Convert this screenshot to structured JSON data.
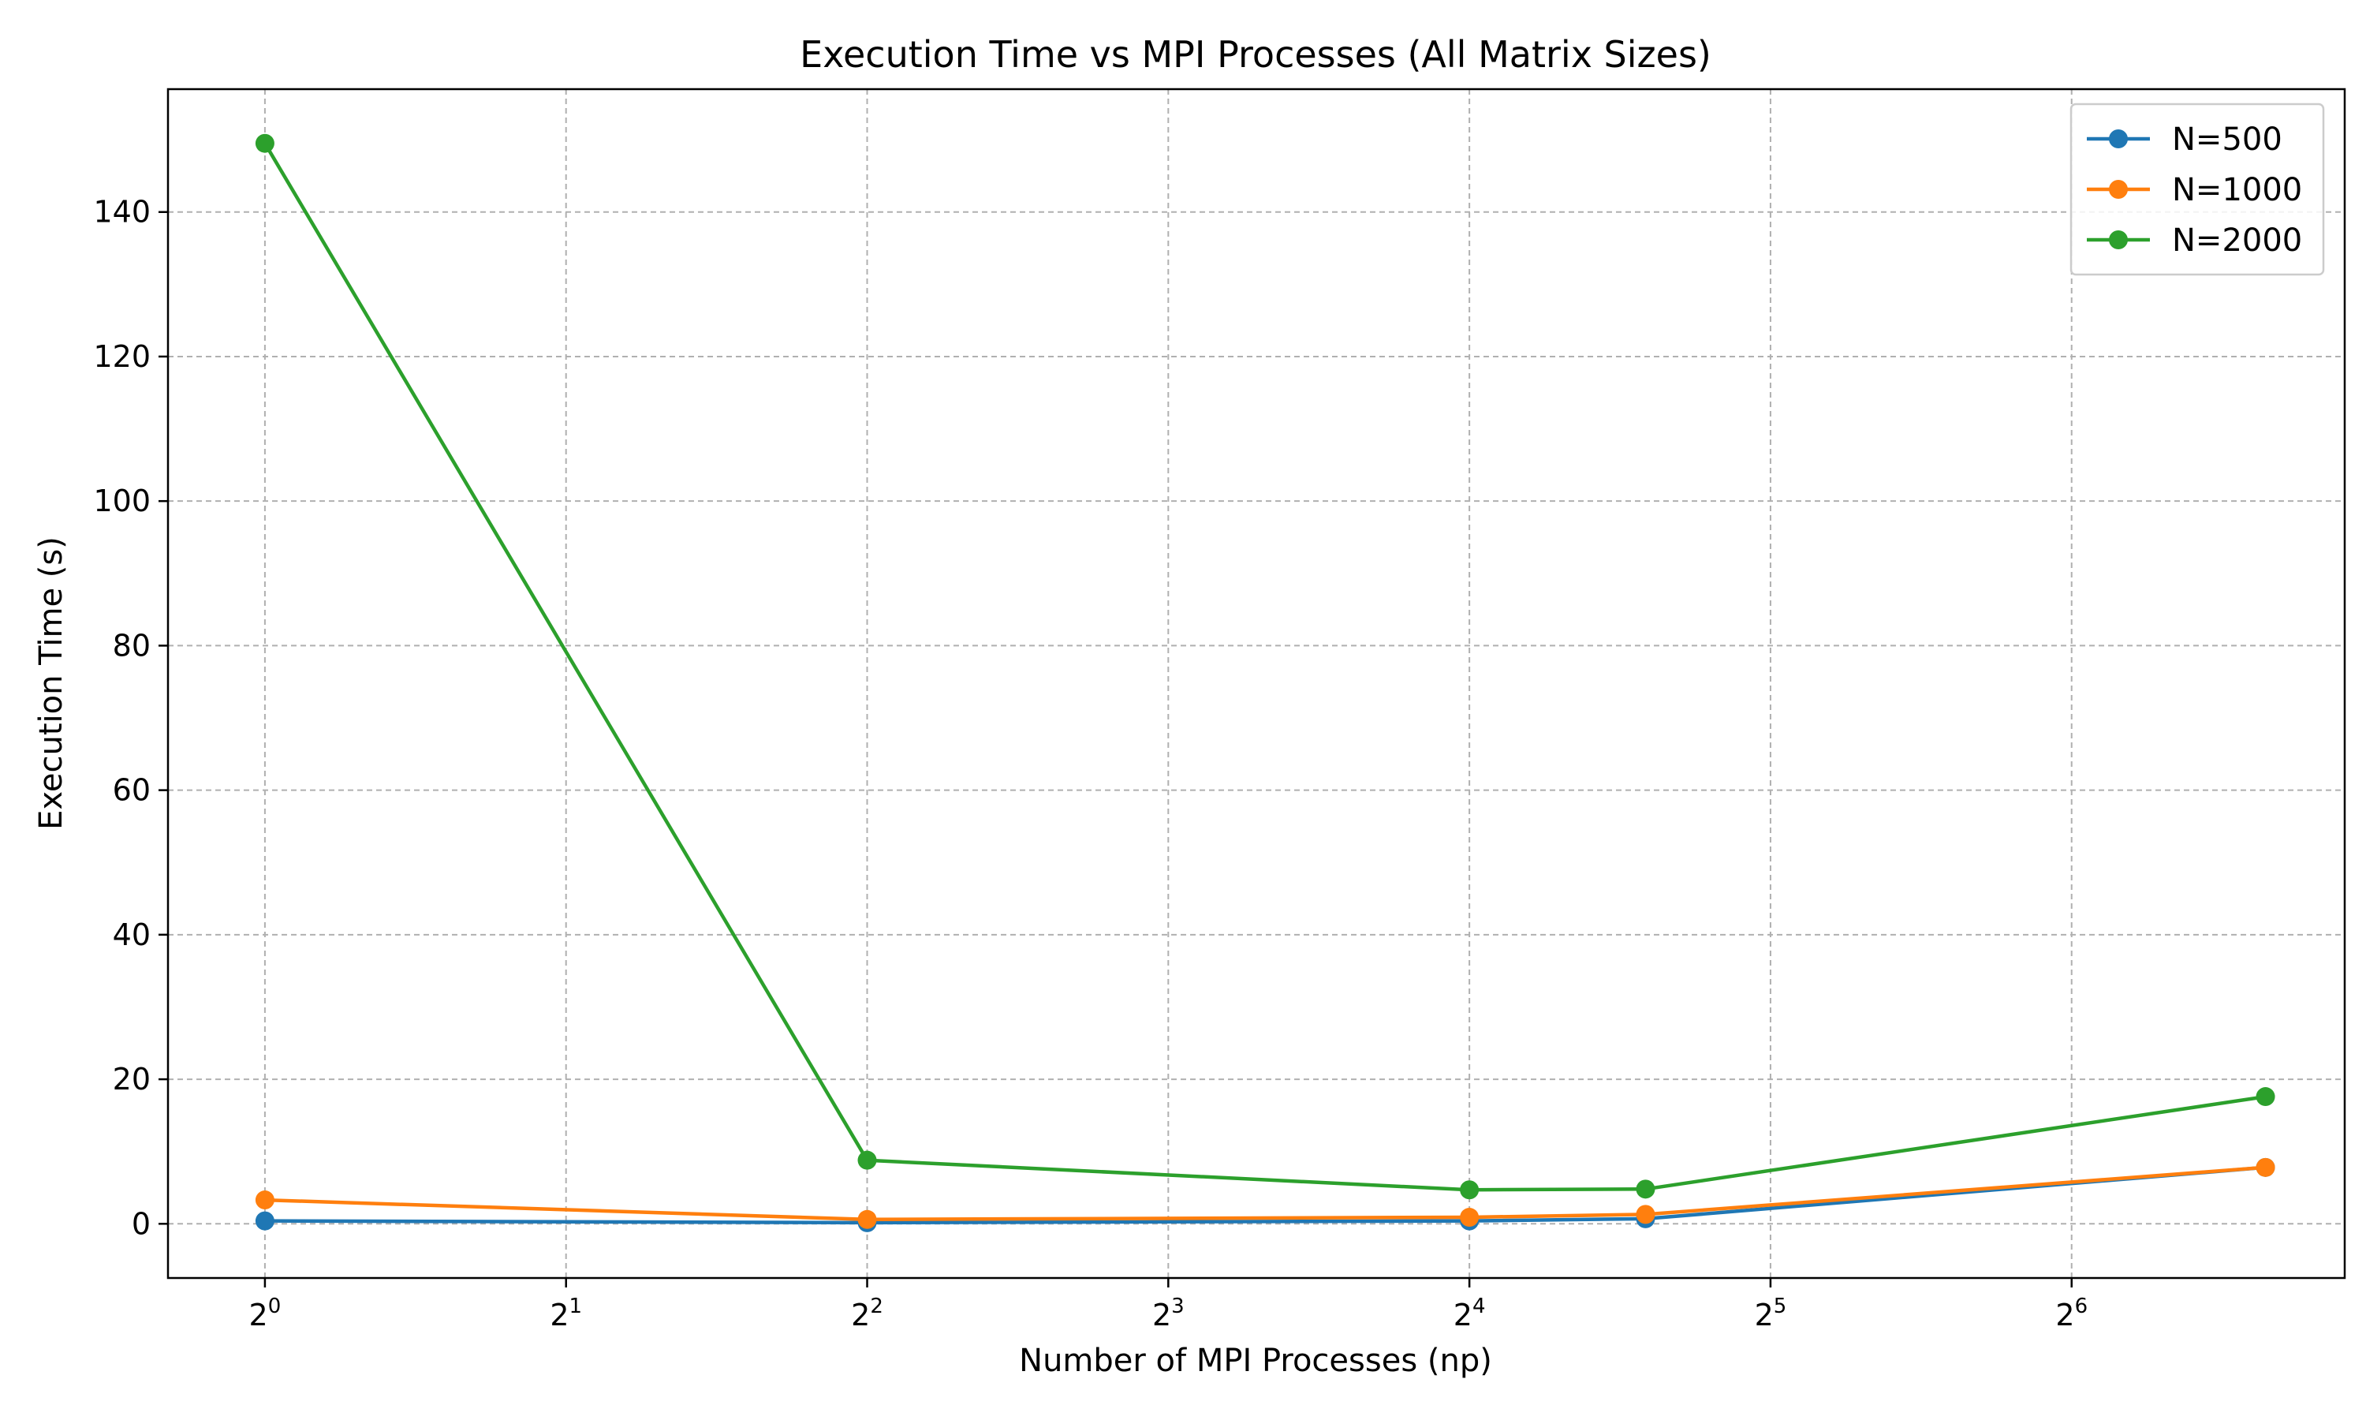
{
  "chart_data": {
    "type": "line",
    "title": "Execution Time vs MPI Processes (All Matrix Sizes)",
    "xlabel": "Number of MPI Processes (np)",
    "ylabel": "Execution Time (s)",
    "xscale": "log2",
    "xlim": [
      0.8,
      120
    ],
    "ylim": [
      -7.5,
      157
    ],
    "xticks": [
      1,
      2,
      4,
      8,
      16,
      32,
      64
    ],
    "xtick_labels": [
      {
        "base": "2",
        "exp": "0"
      },
      {
        "base": "2",
        "exp": "1"
      },
      {
        "base": "2",
        "exp": "2"
      },
      {
        "base": "2",
        "exp": "3"
      },
      {
        "base": "2",
        "exp": "4"
      },
      {
        "base": "2",
        "exp": "5"
      },
      {
        "base": "2",
        "exp": "6"
      }
    ],
    "yticks": [
      0,
      20,
      40,
      60,
      80,
      100,
      120,
      140
    ],
    "ytick_labels": [
      "0",
      "20",
      "40",
      "60",
      "80",
      "100",
      "120",
      "140"
    ],
    "grid": true,
    "legend_position": "top-right",
    "x": [
      1,
      4,
      16,
      24,
      100
    ],
    "series": [
      {
        "name": "N=500",
        "color": "#1f77b4",
        "values": [
          0.4,
          0.15,
          0.4,
          0.7,
          7.8
        ]
      },
      {
        "name": "N=1000",
        "color": "#ff7f0e",
        "values": [
          3.3,
          0.6,
          0.9,
          1.3,
          7.8
        ]
      },
      {
        "name": "N=2000",
        "color": "#2ca02c",
        "values": [
          149.5,
          8.8,
          4.7,
          4.8,
          17.6
        ]
      }
    ]
  }
}
